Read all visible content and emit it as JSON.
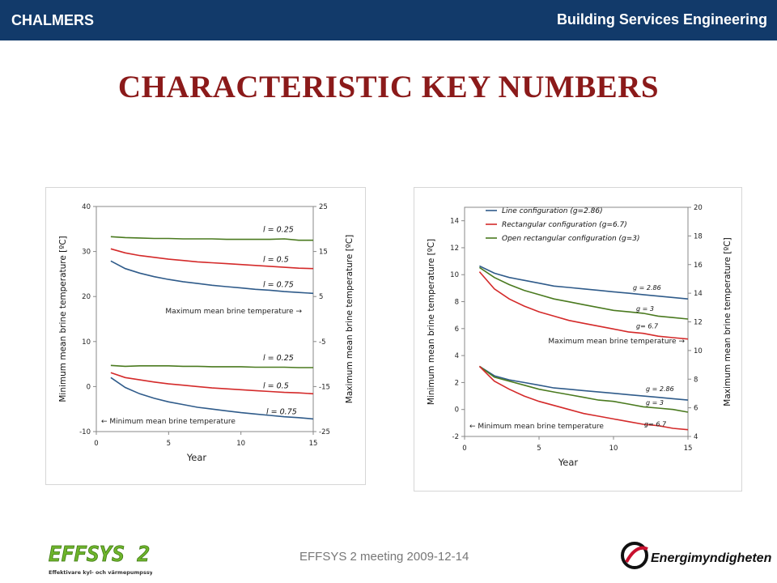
{
  "header": {
    "brand": "CHALMERS",
    "department": "Building Services Engineering"
  },
  "slide_title": "CHARACTERISTIC KEY NUMBERS",
  "footer": {
    "meeting": "EFFSYS 2 meeting 2009-12-14",
    "left_logo_text": "EFFSYS 2",
    "left_logo_subtitle": "Effektivare kyl- och värmepumpssystem",
    "right_logo_text": "Energimyndigheten"
  },
  "colors": {
    "topbar": "#123a6a",
    "title": "#8b1a1a",
    "blue": "#2f5b8a",
    "red": "#d42a2a",
    "green": "#4a7a1f"
  },
  "chart_data": [
    {
      "type": "line",
      "xlabel": "Year",
      "ylabel_left": "Minimum mean brine temperature [ºC]",
      "ylabel_right": "Maximum mean brine temperature [ºC]",
      "xlim": [
        0,
        15
      ],
      "x_ticks": [
        0,
        5,
        10,
        15
      ],
      "ylim_left": [
        -10,
        40
      ],
      "y_ticks_left": [
        -10,
        0,
        10,
        20,
        30,
        40
      ],
      "ylim_right": [
        -25,
        25
      ],
      "y_ticks_right": [
        -25,
        -15,
        -5,
        5,
        15,
        25
      ],
      "x": [
        1,
        2,
        3,
        4,
        5,
        6,
        7,
        8,
        9,
        10,
        11,
        12,
        13,
        14,
        15
      ],
      "series": [
        {
          "name": "l = 0.25",
          "axis": "right",
          "color": "#4a7a1f",
          "values": [
            18.3,
            18.1,
            18.0,
            17.9,
            17.9,
            17.8,
            17.8,
            17.8,
            17.7,
            17.7,
            17.7,
            17.7,
            17.8,
            17.5,
            17.5
          ]
        },
        {
          "name": "l = 0.5",
          "axis": "right",
          "color": "#d42a2a",
          "values": [
            15.6,
            14.7,
            14.1,
            13.7,
            13.3,
            13.0,
            12.7,
            12.5,
            12.3,
            12.1,
            11.9,
            11.7,
            11.5,
            11.3,
            11.2
          ]
        },
        {
          "name": "l = 0.75",
          "axis": "right",
          "color": "#2f5b8a",
          "values": [
            12.9,
            11.2,
            10.2,
            9.4,
            8.8,
            8.3,
            7.9,
            7.5,
            7.2,
            6.9,
            6.6,
            6.4,
            6.1,
            5.9,
            5.7
          ]
        },
        {
          "name": "l = 0.25",
          "axis": "left",
          "color": "#4a7a1f",
          "values": [
            4.7,
            4.5,
            4.6,
            4.6,
            4.6,
            4.5,
            4.5,
            4.4,
            4.4,
            4.4,
            4.3,
            4.3,
            4.3,
            4.2,
            4.2
          ]
        },
        {
          "name": "l = 0.5",
          "axis": "left",
          "color": "#d42a2a",
          "values": [
            3.1,
            2.0,
            1.5,
            1.0,
            0.6,
            0.3,
            0.0,
            -0.3,
            -0.5,
            -0.7,
            -0.9,
            -1.1,
            -1.3,
            -1.4,
            -1.6
          ]
        },
        {
          "name": "l = 0.75",
          "axis": "left",
          "color": "#2f5b8a",
          "values": [
            2.0,
            -0.2,
            -1.6,
            -2.6,
            -3.4,
            -4.0,
            -4.6,
            -5.0,
            -5.4,
            -5.8,
            -6.1,
            -6.4,
            -6.7,
            -6.9,
            -7.2
          ]
        }
      ],
      "annotations": [
        "Maximum mean brine temperature →",
        "← Minimum mean brine temperature"
      ]
    },
    {
      "type": "line",
      "xlabel": "Year",
      "ylabel_left": "Minimum mean brine temperature [ºC]",
      "ylabel_right": "Maximum mean brine temperature [ºC]",
      "xlim": [
        0,
        15
      ],
      "x_ticks": [
        0,
        5,
        10,
        15
      ],
      "ylim_left": [
        -2,
        15
      ],
      "y_ticks_left": [
        -2,
        0,
        2,
        4,
        6,
        8,
        10,
        12,
        14
      ],
      "ylim_right": [
        4,
        20
      ],
      "y_ticks_right": [
        4,
        6,
        8,
        10,
        12,
        14,
        16,
        18,
        20
      ],
      "legend": [
        "Line configuration (g=2.86)",
        "Rectangular configuration (g=6.7)",
        "Open rectangular configuration (g=3)"
      ],
      "legend_placement": "top-left",
      "x": [
        1,
        2,
        3,
        4,
        5,
        6,
        7,
        8,
        9,
        10,
        11,
        12,
        13,
        14,
        15
      ],
      "series": [
        {
          "name": "Line configuration (g=2.86)",
          "label": "g = 2.86",
          "axis": "right",
          "color": "#2f5b8a",
          "values": [
            15.9,
            15.4,
            15.1,
            14.9,
            14.7,
            14.5,
            14.4,
            14.3,
            14.2,
            14.1,
            14.0,
            13.9,
            13.8,
            13.7,
            13.6
          ]
        },
        {
          "name": "Open rectangular configuration (g=3)",
          "label": "g = 3",
          "axis": "right",
          "color": "#4a7a1f",
          "values": [
            15.8,
            15.1,
            14.6,
            14.2,
            13.9,
            13.6,
            13.4,
            13.2,
            13.0,
            12.8,
            12.7,
            12.6,
            12.4,
            12.3,
            12.2
          ]
        },
        {
          "name": "Rectangular configuration (g=6.7)",
          "label": "g= 6.7",
          "axis": "right",
          "color": "#d42a2a",
          "values": [
            15.5,
            14.3,
            13.6,
            13.1,
            12.7,
            12.4,
            12.1,
            11.9,
            11.7,
            11.5,
            11.3,
            11.2,
            11.0,
            10.9,
            10.8
          ]
        },
        {
          "name": "Line configuration (g=2.86)",
          "label": "g = 2.86",
          "axis": "left",
          "color": "#2f5b8a",
          "values": [
            3.2,
            2.5,
            2.2,
            2.0,
            1.8,
            1.6,
            1.5,
            1.4,
            1.3,
            1.2,
            1.1,
            1.0,
            0.9,
            0.8,
            0.7
          ]
        },
        {
          "name": "Open rectangular configuration (g=3)",
          "label": "g = 3",
          "axis": "left",
          "color": "#4a7a1f",
          "values": [
            3.2,
            2.4,
            2.1,
            1.8,
            1.5,
            1.3,
            1.1,
            0.9,
            0.7,
            0.6,
            0.4,
            0.2,
            0.1,
            0.0,
            -0.2
          ]
        },
        {
          "name": "Rectangular configuration (g=6.7)",
          "label": "g= 6.7",
          "axis": "left",
          "color": "#d42a2a",
          "values": [
            3.2,
            2.1,
            1.5,
            1.0,
            0.6,
            0.3,
            0.0,
            -0.3,
            -0.5,
            -0.7,
            -0.9,
            -1.1,
            -1.2,
            -1.4,
            -1.5
          ]
        }
      ],
      "annotations": [
        "Maximum mean brine temperature →",
        "← Minimum mean brine temperature"
      ]
    }
  ]
}
